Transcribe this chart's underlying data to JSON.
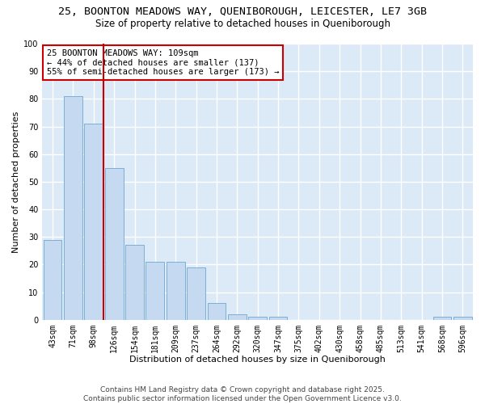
{
  "title_line1": "25, BOONTON MEADOWS WAY, QUENIBOROUGH, LEICESTER, LE7 3GB",
  "title_line2": "Size of property relative to detached houses in Queniborough",
  "xlabel": "Distribution of detached houses by size in Queniborough",
  "ylabel": "Number of detached properties",
  "categories": [
    "43sqm",
    "71sqm",
    "98sqm",
    "126sqm",
    "154sqm",
    "181sqm",
    "209sqm",
    "237sqm",
    "264sqm",
    "292sqm",
    "320sqm",
    "347sqm",
    "375sqm",
    "402sqm",
    "430sqm",
    "458sqm",
    "485sqm",
    "513sqm",
    "541sqm",
    "568sqm",
    "596sqm"
  ],
  "values": [
    29,
    81,
    71,
    55,
    27,
    21,
    21,
    19,
    6,
    2,
    1,
    1,
    0,
    0,
    0,
    0,
    0,
    0,
    0,
    1,
    1
  ],
  "bar_color": "#c5d9f0",
  "bar_edge_color": "#7bafd4",
  "background_color": "#dce9f7",
  "grid_color": "#ffffff",
  "vline_color": "#cc0000",
  "vline_index": 2.5,
  "annotation_text": "25 BOONTON MEADOWS WAY: 109sqm\n← 44% of detached houses are smaller (137)\n55% of semi-detached houses are larger (173) →",
  "annotation_box_facecolor": "#ffffff",
  "annotation_box_edgecolor": "#cc0000",
  "ylim": [
    0,
    100
  ],
  "yticks": [
    0,
    10,
    20,
    30,
    40,
    50,
    60,
    70,
    80,
    90,
    100
  ],
  "footer": "Contains HM Land Registry data © Crown copyright and database right 2025.\nContains public sector information licensed under the Open Government Licence v3.0.",
  "title_fontsize": 9.5,
  "subtitle_fontsize": 8.5,
  "axis_label_fontsize": 8,
  "tick_fontsize": 7,
  "annotation_fontsize": 7.5,
  "footer_fontsize": 6.5
}
